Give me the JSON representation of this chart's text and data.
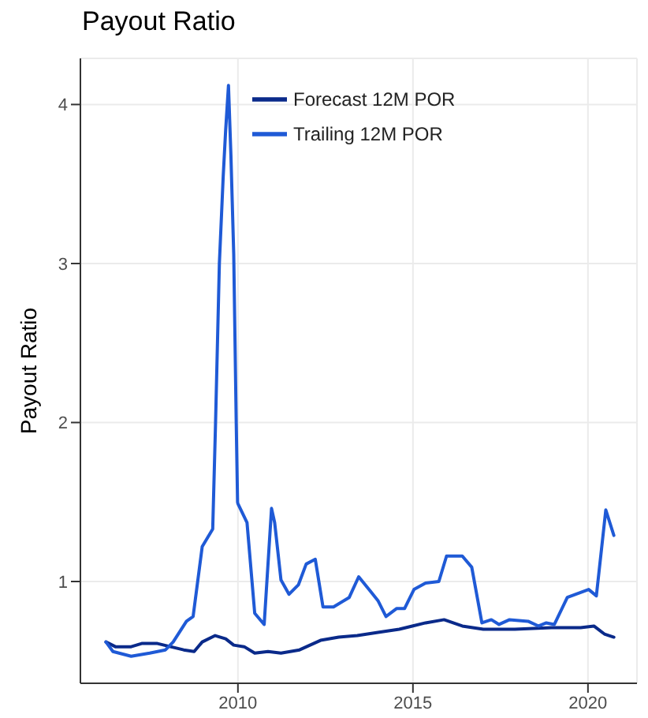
{
  "chart_data": {
    "type": "line",
    "title": "Payout Ratio",
    "ylabel": "Payout Ratio",
    "xlim": [
      2005.5,
      2021.4
    ],
    "xticks": [
      2010,
      2015,
      2020
    ],
    "ylim": [
      0.36,
      4.29
    ],
    "yticks": [
      1,
      2,
      3,
      4
    ],
    "grid": true,
    "legend": "top",
    "line_style": "solid",
    "marker": "none",
    "series": [
      {
        "name": "Forecast 12M POR",
        "color": "#0a2a8a",
        "x": [
          2006.23,
          2006.5,
          2006.95,
          2007.25,
          2007.7,
          2008.45,
          2008.75,
          2008.98,
          2009.35,
          2009.65,
          2009.88,
          2010.18,
          2010.48,
          2010.86,
          2011.23,
          2011.76,
          2012.36,
          2012.88,
          2013.41,
          2014.0,
          2014.61,
          2014.98,
          2015.36,
          2015.89,
          2016.41,
          2017.01,
          2017.91,
          2018.96,
          2019.79,
          2020.17,
          2020.47,
          2020.74
        ],
        "values": [
          0.62,
          0.59,
          0.59,
          0.61,
          0.61,
          0.57,
          0.56,
          0.62,
          0.66,
          0.64,
          0.6,
          0.59,
          0.55,
          0.56,
          0.55,
          0.57,
          0.63,
          0.65,
          0.66,
          0.68,
          0.7,
          0.72,
          0.74,
          0.76,
          0.72,
          0.7,
          0.7,
          0.71,
          0.71,
          0.72,
          0.67,
          0.65
        ]
      },
      {
        "name": "Trailing 12M POR",
        "color": "#1f5ad6",
        "x": [
          2006.23,
          2006.43,
          2006.95,
          2007.48,
          2007.93,
          2008.15,
          2008.53,
          2008.72,
          2008.98,
          2009.28,
          2009.36,
          2009.47,
          2009.58,
          2009.65,
          2009.73,
          2009.8,
          2009.88,
          2009.95,
          2009.99,
          2010.0,
          2010.26,
          2010.48,
          2010.75,
          2010.96,
          2011.05,
          2011.23,
          2011.46,
          2011.73,
          2011.95,
          2012.21,
          2012.43,
          2012.73,
          2013.18,
          2013.45,
          2013.78,
          2014.0,
          2014.23,
          2014.53,
          2014.76,
          2015.03,
          2015.36,
          2015.74,
          2015.96,
          2016.41,
          2016.68,
          2016.97,
          2017.24,
          2017.46,
          2017.76,
          2018.29,
          2018.59,
          2018.81,
          2019.04,
          2019.41,
          2020.02,
          2020.24,
          2020.51,
          2020.74
        ],
        "values": [
          0.62,
          0.56,
          0.53,
          0.55,
          0.57,
          0.62,
          0.75,
          0.78,
          1.22,
          1.33,
          1.99,
          3.0,
          3.55,
          3.84,
          4.12,
          3.68,
          3.06,
          2.02,
          1.5,
          1.49,
          1.37,
          0.8,
          0.73,
          1.46,
          1.37,
          1.01,
          0.92,
          0.98,
          1.11,
          1.14,
          0.84,
          0.84,
          0.9,
          1.03,
          0.94,
          0.88,
          0.78,
          0.83,
          0.83,
          0.95,
          0.99,
          1.0,
          1.16,
          1.16,
          1.09,
          0.74,
          0.76,
          0.73,
          0.76,
          0.75,
          0.72,
          0.74,
          0.73,
          0.9,
          0.95,
          0.91,
          1.45,
          1.29
        ]
      }
    ]
  }
}
